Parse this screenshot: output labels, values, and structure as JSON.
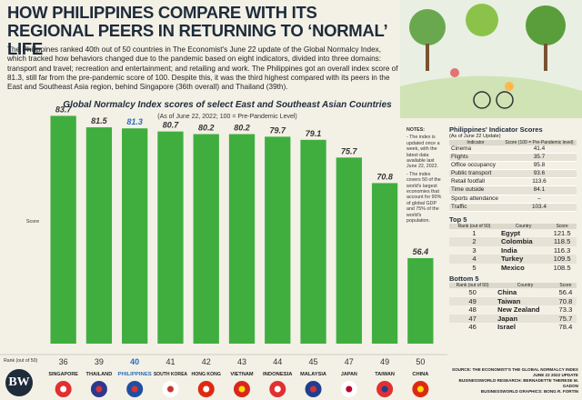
{
  "title": "HOW PHILIPPINES COMPARE WITH ITS REGIONAL PEERS IN RETURNING TO ‘NORMAL’ LIFE",
  "intro": "The Philippines ranked 40th out of 50 countries in The Economist's June 22 update of the Global Normalcy Index, which tracked how behaviors changed due to the pandemic based on eight indicators, divided into three domains: transport and travel; recreation and entertainment; and retailing and work. The Philippines got an overall index score of 81.3, still far from the pre-pandemic score of 100. Despite this, it was the third highest compared with its peers in the East and Southeast Asia region, behind Singapore (36th overall) and Thailand (39th).",
  "chart_data": {
    "type": "bar",
    "title": "Global Normalcy Index scores of select East and Southeast Asian Countries",
    "subtitle": "(As of June 22, 2022; 100 = Pre-Pandemic Level)",
    "ylabel": "Score",
    "rank_label": "Rank (out of 50)",
    "categories": [
      "SINGAPORE",
      "THAILAND",
      "PHILIPPINES",
      "SOUTH KOREA",
      "HONG KONG",
      "VIETNAM",
      "INDONESIA",
      "MALAYSIA",
      "JAPAN",
      "TAIWAN",
      "CHINA"
    ],
    "values": [
      83.7,
      81.5,
      81.3,
      80.7,
      80.2,
      80.2,
      79.7,
      79.1,
      75.7,
      70.8,
      56.4
    ],
    "ranks": [
      36,
      39,
      40,
      41,
      42,
      43,
      44,
      45,
      47,
      49,
      50
    ],
    "color": "#3fae3f",
    "highlight": {
      "index": 2,
      "color": "#2a6ebb"
    },
    "ylim": [
      40,
      85
    ]
  },
  "notes": {
    "heading": "NOTES:",
    "items": [
      "- The index is updated once a week, with the latest data available last June 22, 2022.",
      "- The index covers 50 of the world's largest economies that account for 90% of global GDP and 75% of the world's population."
    ]
  },
  "indicators": {
    "title": "Philippines' Indicator Scores",
    "subtitle": "(As of June 22 Update)",
    "headers": [
      "Indicator",
      "Score (100 = Pre-Pandemic level)"
    ],
    "rows": [
      [
        "Cinema",
        41.4
      ],
      [
        "Flights",
        35.7
      ],
      [
        "Office occupancy",
        95.8
      ],
      [
        "Public transport",
        93.6
      ],
      [
        "Retail footfall",
        113.6
      ],
      [
        "Time outside",
        84.1
      ],
      [
        "Sports attendance",
        "–"
      ],
      [
        "Traffic",
        103.4
      ]
    ]
  },
  "top5": {
    "title": "Top 5",
    "headers": [
      "Rank (out of 50)",
      "Country",
      "Score"
    ],
    "rows": [
      [
        1,
        "Egypt",
        121.5
      ],
      [
        2,
        "Colombia",
        118.5
      ],
      [
        3,
        "India",
        116.3
      ],
      [
        4,
        "Turkey",
        109.5
      ],
      [
        5,
        "Mexico",
        108.5
      ]
    ]
  },
  "bottom5": {
    "title": "Bottom 5",
    "headers": [
      "Rank (out of 50)",
      "Country",
      "Score"
    ],
    "rows": [
      [
        50,
        "China",
        56.4
      ],
      [
        49,
        "Taiwan",
        70.8
      ],
      [
        48,
        "New Zealand",
        73.3
      ],
      [
        47,
        "Japan",
        75.7
      ],
      [
        46,
        "Israel",
        78.4
      ]
    ]
  },
  "source": [
    "SOURCE: THE ECONOMIST'S THE GLOBAL NORMALCY INDEX JUNE 22 2022 UPDATE",
    "BUSINESSWORLD RESEARCH: BERNADETTE THERESE M. GADON",
    "BUSINESSWORLD GRAPHICS: BONG R. FORTIN"
  ],
  "logo": "BW"
}
